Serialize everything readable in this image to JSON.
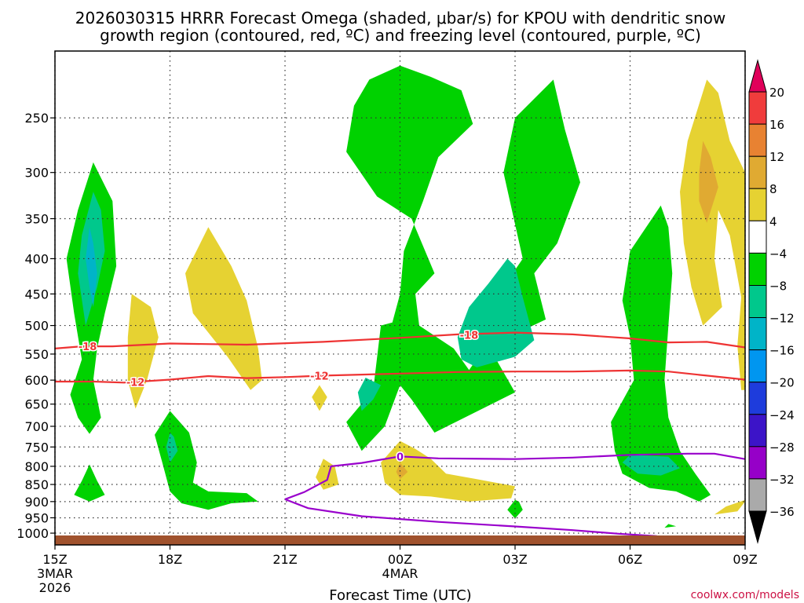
{
  "chart_data": {
    "type": "heatmap",
    "title_line1": "2026030315 HRRR Forecast Omega (shaded, μbar/s) for KPOU with dendritic snow",
    "title_line2": "growth region (contoured, red, ºC) and freezing level (contoured, purple, ºC)",
    "xlabel": "Forecast Time (UTC)",
    "x_ticks": [
      {
        "hour": 15,
        "label": "15Z",
        "sub1": "3MAR",
        "sub2": "2026"
      },
      {
        "hour": 18,
        "label": "18Z",
        "sub1": "",
        "sub2": ""
      },
      {
        "hour": 21,
        "label": "21Z",
        "sub1": "",
        "sub2": ""
      },
      {
        "hour": 24,
        "label": "00Z",
        "sub1": "4MAR",
        "sub2": ""
      },
      {
        "hour": 27,
        "label": "03Z",
        "sub1": "",
        "sub2": ""
      },
      {
        "hour": 30,
        "label": "06Z",
        "sub1": "",
        "sub2": ""
      },
      {
        "hour": 33,
        "label": "09Z",
        "sub1": "",
        "sub2": ""
      }
    ],
    "x_range_hours": [
      15,
      33
    ],
    "y_ticks_hpa": [
      250,
      300,
      350,
      400,
      450,
      500,
      550,
      600,
      650,
      700,
      750,
      800,
      850,
      900,
      950,
      1000
    ],
    "y_range_hpa": [
      200,
      1040
    ],
    "colorbar": {
      "labels": [
        "20",
        "16",
        "12",
        "8",
        "4",
        "−4",
        "−8",
        "−12",
        "−16",
        "−20",
        "−24",
        "−28",
        "−32",
        "−36"
      ],
      "colors": [
        "#e0005a",
        "#f03c3c",
        "#e88232",
        "#e0aa32",
        "#e6d232",
        "#ffffff",
        "#00d200",
        "#00c88c",
        "#00b4c8",
        "#0096f0",
        "#1e3cdc",
        "#3c14c8",
        "#9600c8",
        "#aaaaaa",
        "#000000"
      ]
    },
    "contours": [
      {
        "label": "-18",
        "color": "#ee3333",
        "points": [
          [
            15.0,
            540
          ],
          [
            15.7,
            536
          ],
          [
            16.5,
            536
          ],
          [
            18.0,
            531
          ],
          [
            20.0,
            533
          ],
          [
            22.0,
            528
          ],
          [
            24.0,
            521
          ],
          [
            25.5,
            515
          ],
          [
            27.0,
            512
          ],
          [
            28.5,
            515
          ],
          [
            30.0,
            522
          ],
          [
            31.0,
            529
          ],
          [
            32.0,
            528
          ],
          [
            33.0,
            538
          ]
        ]
      },
      {
        "label": "-12",
        "color": "#ee3333",
        "points": [
          [
            15.0,
            603
          ],
          [
            16.0,
            603
          ],
          [
            16.8,
            605
          ],
          [
            18.0,
            599
          ],
          [
            19.0,
            592
          ],
          [
            20.0,
            596
          ],
          [
            21.0,
            594
          ],
          [
            22.0,
            591
          ],
          [
            23.0,
            589
          ],
          [
            24.0,
            587
          ],
          [
            25.5,
            584
          ],
          [
            27.0,
            583
          ],
          [
            28.5,
            583
          ],
          [
            30.0,
            581
          ],
          [
            31.0,
            583
          ],
          [
            32.0,
            591
          ],
          [
            33.0,
            599
          ]
        ]
      },
      {
        "label": "0",
        "color": "#9900cc",
        "points": [
          [
            21.0,
            893
          ],
          [
            21.5,
            872
          ],
          [
            22.1,
            837
          ],
          [
            22.2,
            800
          ],
          [
            23.0,
            791
          ],
          [
            24.0,
            774
          ],
          [
            25.0,
            779
          ],
          [
            27.0,
            781
          ],
          [
            28.5,
            777
          ],
          [
            30.0,
            770
          ],
          [
            31.5,
            767
          ],
          [
            32.2,
            767
          ],
          [
            33.0,
            781
          ]
        ]
      },
      {
        "label": "",
        "color": "#9900cc",
        "points": [
          [
            21.0,
            893
          ],
          [
            21.6,
            920
          ],
          [
            23.0,
            945
          ],
          [
            25.0,
            963
          ],
          [
            27.0,
            978
          ],
          [
            28.5,
            990
          ],
          [
            29.7,
            1002
          ],
          [
            30.7,
            1010
          ]
        ]
      }
    ],
    "shaded_regions": [
      {
        "level": "-8",
        "color": "#00d200",
        "points": [
          [
            16.0,
            290
          ],
          [
            15.6,
            340
          ],
          [
            15.3,
            400
          ],
          [
            15.5,
            480
          ],
          [
            15.7,
            560
          ],
          [
            15.4,
            630
          ],
          [
            15.6,
            680
          ],
          [
            15.9,
            718
          ],
          [
            16.2,
            680
          ],
          [
            16.0,
            600
          ],
          [
            16.1,
            540
          ],
          [
            16.3,
            480
          ],
          [
            16.6,
            410
          ],
          [
            16.5,
            330
          ]
        ]
      },
      {
        "level": "-12",
        "color": "#00c88c",
        "points": [
          [
            16.0,
            320
          ],
          [
            15.7,
            370
          ],
          [
            15.6,
            420
          ],
          [
            15.8,
            500
          ],
          [
            16.1,
            440
          ],
          [
            16.3,
            390
          ],
          [
            16.2,
            340
          ]
        ]
      },
      {
        "level": "-16",
        "color": "#00b4c8",
        "points": [
          [
            15.9,
            360
          ],
          [
            15.8,
            400
          ],
          [
            15.9,
            440
          ],
          [
            16.0,
            470
          ],
          [
            16.1,
            420
          ],
          [
            16.0,
            380
          ]
        ]
      },
      {
        "level": "-8",
        "color": "#00d200",
        "points": [
          [
            15.9,
            795
          ],
          [
            15.7,
            840
          ],
          [
            15.5,
            880
          ],
          [
            15.9,
            900
          ],
          [
            16.3,
            880
          ],
          [
            16.1,
            840
          ]
        ]
      },
      {
        "level": "-8",
        "color": "#00d200",
        "points": [
          [
            18.0,
            665
          ],
          [
            17.6,
            720
          ],
          [
            17.8,
            790
          ],
          [
            18.0,
            870
          ],
          [
            18.3,
            905
          ],
          [
            19.0,
            925
          ],
          [
            19.6,
            905
          ],
          [
            20.3,
            900
          ],
          [
            20.0,
            875
          ],
          [
            19.0,
            870
          ],
          [
            18.6,
            845
          ],
          [
            18.7,
            790
          ],
          [
            18.5,
            715
          ]
        ]
      },
      {
        "level": "-12",
        "color": "#00c88c",
        "points": [
          [
            18.0,
            715
          ],
          [
            17.9,
            750
          ],
          [
            18.0,
            790
          ],
          [
            18.2,
            760
          ],
          [
            18.1,
            725
          ]
        ]
      },
      {
        "level": "-8",
        "color": "#00d200",
        "points": [
          [
            23.5,
            500
          ],
          [
            23.3,
            620
          ],
          [
            22.6,
            690
          ],
          [
            23.0,
            760
          ],
          [
            23.6,
            700
          ],
          [
            24.0,
            610
          ],
          [
            24.3,
            640
          ],
          [
            24.9,
            715
          ],
          [
            27.0,
            625
          ],
          [
            26.0,
            500
          ],
          [
            27.2,
            400
          ],
          [
            26.7,
            300
          ],
          [
            27.0,
            250
          ],
          [
            28.0,
            220
          ],
          [
            28.3,
            260
          ],
          [
            28.7,
            310
          ],
          [
            28.1,
            380
          ],
          [
            27.5,
            420
          ],
          [
            27.8,
            490
          ],
          [
            26.2,
            540
          ],
          [
            25.8,
            580
          ],
          [
            25.4,
            540
          ],
          [
            24.5,
            500
          ],
          [
            24.4,
            450
          ],
          [
            24.9,
            420
          ],
          [
            24.3,
            350
          ],
          [
            23.4,
            325
          ],
          [
            22.6,
            280
          ],
          [
            22.8,
            240
          ],
          [
            23.2,
            220
          ],
          [
            24.0,
            210
          ],
          [
            24.8,
            218
          ],
          [
            25.6,
            228
          ],
          [
            25.9,
            255
          ],
          [
            25.0,
            285
          ],
          [
            24.6,
            330
          ],
          [
            24.1,
            390
          ],
          [
            24.0,
            450
          ],
          [
            23.8,
            495
          ]
        ]
      },
      {
        "level": "-12",
        "color": "#00c88c",
        "points": [
          [
            26.8,
            400
          ],
          [
            26.3,
            435
          ],
          [
            25.8,
            470
          ],
          [
            25.5,
            520
          ],
          [
            25.6,
            560
          ],
          [
            26.0,
            575
          ],
          [
            27.0,
            555
          ],
          [
            27.5,
            525
          ],
          [
            27.2,
            455
          ],
          [
            27.0,
            410
          ]
        ]
      },
      {
        "level": "-12",
        "color": "#00c88c",
        "points": [
          [
            23.1,
            595
          ],
          [
            22.9,
            625
          ],
          [
            23.0,
            665
          ],
          [
            23.3,
            640
          ],
          [
            23.5,
            610
          ]
        ]
      },
      {
        "level": "-8",
        "color": "#00d200",
        "points": [
          [
            30.8,
            335
          ],
          [
            30.0,
            390
          ],
          [
            29.8,
            460
          ],
          [
            30.0,
            520
          ],
          [
            30.1,
            600
          ],
          [
            29.5,
            690
          ],
          [
            29.6,
            760
          ],
          [
            29.8,
            820
          ],
          [
            30.5,
            860
          ],
          [
            31.2,
            870
          ],
          [
            31.8,
            900
          ],
          [
            32.1,
            880
          ],
          [
            31.7,
            820
          ],
          [
            31.3,
            760
          ],
          [
            31.0,
            680
          ],
          [
            30.9,
            600
          ],
          [
            31.0,
            500
          ],
          [
            31.1,
            420
          ],
          [
            31.0,
            360
          ]
        ]
      },
      {
        "level": "-12",
        "color": "#00c88c",
        "points": [
          [
            30.0,
            770
          ],
          [
            29.8,
            790
          ],
          [
            30.2,
            820
          ],
          [
            30.8,
            825
          ],
          [
            31.3,
            805
          ],
          [
            31.0,
            775
          ]
        ]
      },
      {
        "level": "-8",
        "color": "#00d200",
        "points": [
          [
            27.0,
            895
          ],
          [
            26.8,
            925
          ],
          [
            27.0,
            952
          ],
          [
            27.2,
            925
          ],
          [
            27.1,
            900
          ]
        ]
      },
      {
        "level": "4",
        "color": "#e6d232",
        "points": [
          [
            17.0,
            450
          ],
          [
            16.9,
            520
          ],
          [
            16.9,
            600
          ],
          [
            17.1,
            660
          ],
          [
            17.4,
            600
          ],
          [
            17.7,
            520
          ],
          [
            17.5,
            470
          ]
        ]
      },
      {
        "level": "4",
        "color": "#e6d232",
        "points": [
          [
            19.0,
            360
          ],
          [
            18.4,
            420
          ],
          [
            18.6,
            480
          ],
          [
            19.5,
            555
          ],
          [
            20.1,
            620
          ],
          [
            20.4,
            600
          ],
          [
            20.3,
            540
          ],
          [
            20.0,
            460
          ],
          [
            19.6,
            410
          ]
        ]
      },
      {
        "level": "4",
        "color": "#e6d232",
        "points": [
          [
            21.9,
            610
          ],
          [
            21.7,
            635
          ],
          [
            21.9,
            665
          ],
          [
            22.1,
            635
          ]
        ]
      },
      {
        "level": "4",
        "color": "#e6d232",
        "points": [
          [
            22.0,
            780
          ],
          [
            21.8,
            830
          ],
          [
            22.0,
            865
          ],
          [
            22.4,
            850
          ],
          [
            22.3,
            800
          ]
        ]
      },
      {
        "level": "4",
        "color": "#e6d232",
        "points": [
          [
            24.0,
            735
          ],
          [
            23.5,
            790
          ],
          [
            23.6,
            845
          ],
          [
            24.0,
            880
          ],
          [
            24.8,
            885
          ],
          [
            25.8,
            900
          ],
          [
            26.9,
            890
          ],
          [
            27.0,
            855
          ],
          [
            26.0,
            835
          ],
          [
            25.2,
            820
          ],
          [
            24.8,
            780
          ],
          [
            24.4,
            755
          ]
        ]
      },
      {
        "level": "8",
        "color": "#e0aa32",
        "points": [
          [
            24.0,
            790
          ],
          [
            23.9,
            815
          ],
          [
            24.0,
            835
          ],
          [
            24.2,
            815
          ]
        ]
      },
      {
        "level": "4",
        "color": "#e6d232",
        "points": [
          [
            32.0,
            220
          ],
          [
            31.5,
            270
          ],
          [
            31.3,
            320
          ],
          [
            31.4,
            380
          ],
          [
            31.6,
            440
          ],
          [
            31.9,
            500
          ],
          [
            32.4,
            470
          ],
          [
            32.2,
            400
          ],
          [
            32.3,
            340
          ],
          [
            32.6,
            370
          ],
          [
            32.9,
            455
          ],
          [
            32.8,
            535
          ],
          [
            32.9,
            620
          ],
          [
            33.0,
            620
          ],
          [
            33.0,
            300
          ],
          [
            32.6,
            270
          ],
          [
            32.3,
            230
          ]
        ]
      },
      {
        "level": "8",
        "color": "#e0aa32",
        "points": [
          [
            31.9,
            270
          ],
          [
            31.8,
            300
          ],
          [
            31.8,
            330
          ],
          [
            32.0,
            355
          ],
          [
            32.3,
            315
          ],
          [
            32.1,
            285
          ]
        ]
      },
      {
        "level": "4",
        "color": "#e6d232",
        "points": [
          [
            32.5,
            915
          ],
          [
            32.2,
            940
          ],
          [
            32.8,
            930
          ],
          [
            33.0,
            900
          ],
          [
            33.0,
            895
          ]
        ]
      },
      {
        "level": "-8",
        "color": "#00d200",
        "points": [
          [
            31.0,
            970
          ],
          [
            30.9,
            982
          ],
          [
            31.2,
            977
          ]
        ]
      }
    ]
  },
  "credit": "coolwx.com/models"
}
